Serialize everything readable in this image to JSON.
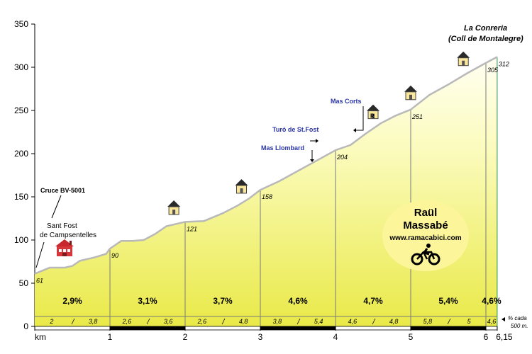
{
  "chart_data": {
    "type": "area",
    "title": "",
    "xlabel": "km",
    "ylabel": "",
    "xlim": [
      0,
      6.15
    ],
    "ylim": [
      0,
      350
    ],
    "y_ticks": [
      "0",
      "50",
      "100",
      "150",
      "200",
      "250",
      "300",
      "350"
    ],
    "x_ticks": [
      {
        "km": 0,
        "label": "km"
      },
      {
        "km": 1,
        "label": "1"
      },
      {
        "km": 2,
        "label": "2"
      },
      {
        "km": 3,
        "label": "3"
      },
      {
        "km": 4,
        "label": "4"
      },
      {
        "km": 5,
        "label": "5"
      },
      {
        "km": 6,
        "label": "6"
      },
      {
        "km": 6.15,
        "label": "6,15"
      }
    ],
    "profile": [
      [
        0,
        61
      ],
      [
        0.2,
        68
      ],
      [
        0.4,
        68
      ],
      [
        0.5,
        70
      ],
      [
        0.6,
        76
      ],
      [
        0.8,
        80
      ],
      [
        0.95,
        84
      ],
      [
        1,
        90
      ],
      [
        1.15,
        99
      ],
      [
        1.3,
        99
      ],
      [
        1.45,
        100
      ],
      [
        1.6,
        107
      ],
      [
        1.75,
        116
      ],
      [
        1.9,
        119
      ],
      [
        2,
        121
      ],
      [
        2.25,
        122
      ],
      [
        2.5,
        131
      ],
      [
        2.7,
        140
      ],
      [
        2.85,
        148
      ],
      [
        3,
        158
      ],
      [
        3.25,
        168
      ],
      [
        3.5,
        180
      ],
      [
        3.75,
        192
      ],
      [
        4,
        204
      ],
      [
        4.2,
        210
      ],
      [
        4.4,
        223
      ],
      [
        4.6,
        235
      ],
      [
        4.8,
        244
      ],
      [
        5,
        251
      ],
      [
        5.25,
        268
      ],
      [
        5.5,
        280
      ],
      [
        5.75,
        293
      ],
      [
        6,
        305
      ],
      [
        6.15,
        312
      ]
    ],
    "km_markers": [
      {
        "km": 0,
        "elevation": "61"
      },
      {
        "km": 1,
        "elevation": "90"
      },
      {
        "km": 2,
        "elevation": "121"
      },
      {
        "km": 3,
        "elevation": "158"
      },
      {
        "km": 4,
        "elevation": "204"
      },
      {
        "km": 5,
        "elevation": "251"
      },
      {
        "km": 6,
        "elevation": "305"
      },
      {
        "km": 6.15,
        "elevation": "312"
      }
    ],
    "segment_gradients": [
      {
        "from": 0,
        "to": 1,
        "label": "2,9%"
      },
      {
        "from": 1,
        "to": 2,
        "label": "3,1%"
      },
      {
        "from": 2,
        "to": 3,
        "label": "3,7%"
      },
      {
        "from": 3,
        "to": 4,
        "label": "4,6%"
      },
      {
        "from": 4,
        "to": 5,
        "label": "4,7%"
      },
      {
        "from": 5,
        "to": 6,
        "label": "5,4%"
      },
      {
        "from": 6,
        "to": 6.15,
        "label": "4,6%"
      }
    ],
    "half_km_gradients": [
      {
        "from": 0,
        "to": 1,
        "first": "2",
        "second": "3,8"
      },
      {
        "from": 1,
        "to": 2,
        "first": "2,6",
        "second": "3,6"
      },
      {
        "from": 2,
        "to": 3,
        "first": "2,6",
        "second": "4,8"
      },
      {
        "from": 3,
        "to": 4,
        "first": "3,8",
        "second": "5,4"
      },
      {
        "from": 4,
        "to": 5,
        "first": "4,6",
        "second": "4,8"
      },
      {
        "from": 5,
        "to": 6,
        "first": "5,8",
        "second": "5"
      },
      {
        "from": 6,
        "to": 6.15,
        "first": "4,6",
        "second": ""
      }
    ],
    "half_km_note": [
      "% cada",
      "500 m."
    ],
    "summit": [
      "La Conreria",
      "(Coll de Montalegre)"
    ],
    "start_labels": {
      "road": "Cruce BV-5001",
      "town": [
        "Sant Fost",
        "de Campsentelles"
      ]
    },
    "waypoints": [
      {
        "name": "Mas Llombard",
        "km": 3.7
      },
      {
        "name": "Turó de St.Fost",
        "km": 3.75
      },
      {
        "name": "Mas Corts",
        "km": 4.35
      }
    ],
    "house_icons": [
      {
        "km": 1.85,
        "elevation": "121"
      },
      {
        "km": 2.75,
        "elevation": "158"
      },
      {
        "km": 4.5,
        "elevation": "235",
        "badge": "R"
      },
      {
        "km": 5.0,
        "elevation": "251"
      },
      {
        "km": 5.7,
        "elevation": "305"
      }
    ],
    "colors": {
      "fill_top": "#fffff2",
      "fill_bottom": "#e9e948",
      "profile_line": "#b9b9b9",
      "end_line": "#2f8f55",
      "waypoint_text": "#2a35a8",
      "badge_fill": "#fdf59a"
    }
  },
  "author_badge": {
    "name": [
      "Raül",
      "Massabé"
    ],
    "site": "www.ramacabici.com",
    "icon": "cyclist-icon"
  }
}
